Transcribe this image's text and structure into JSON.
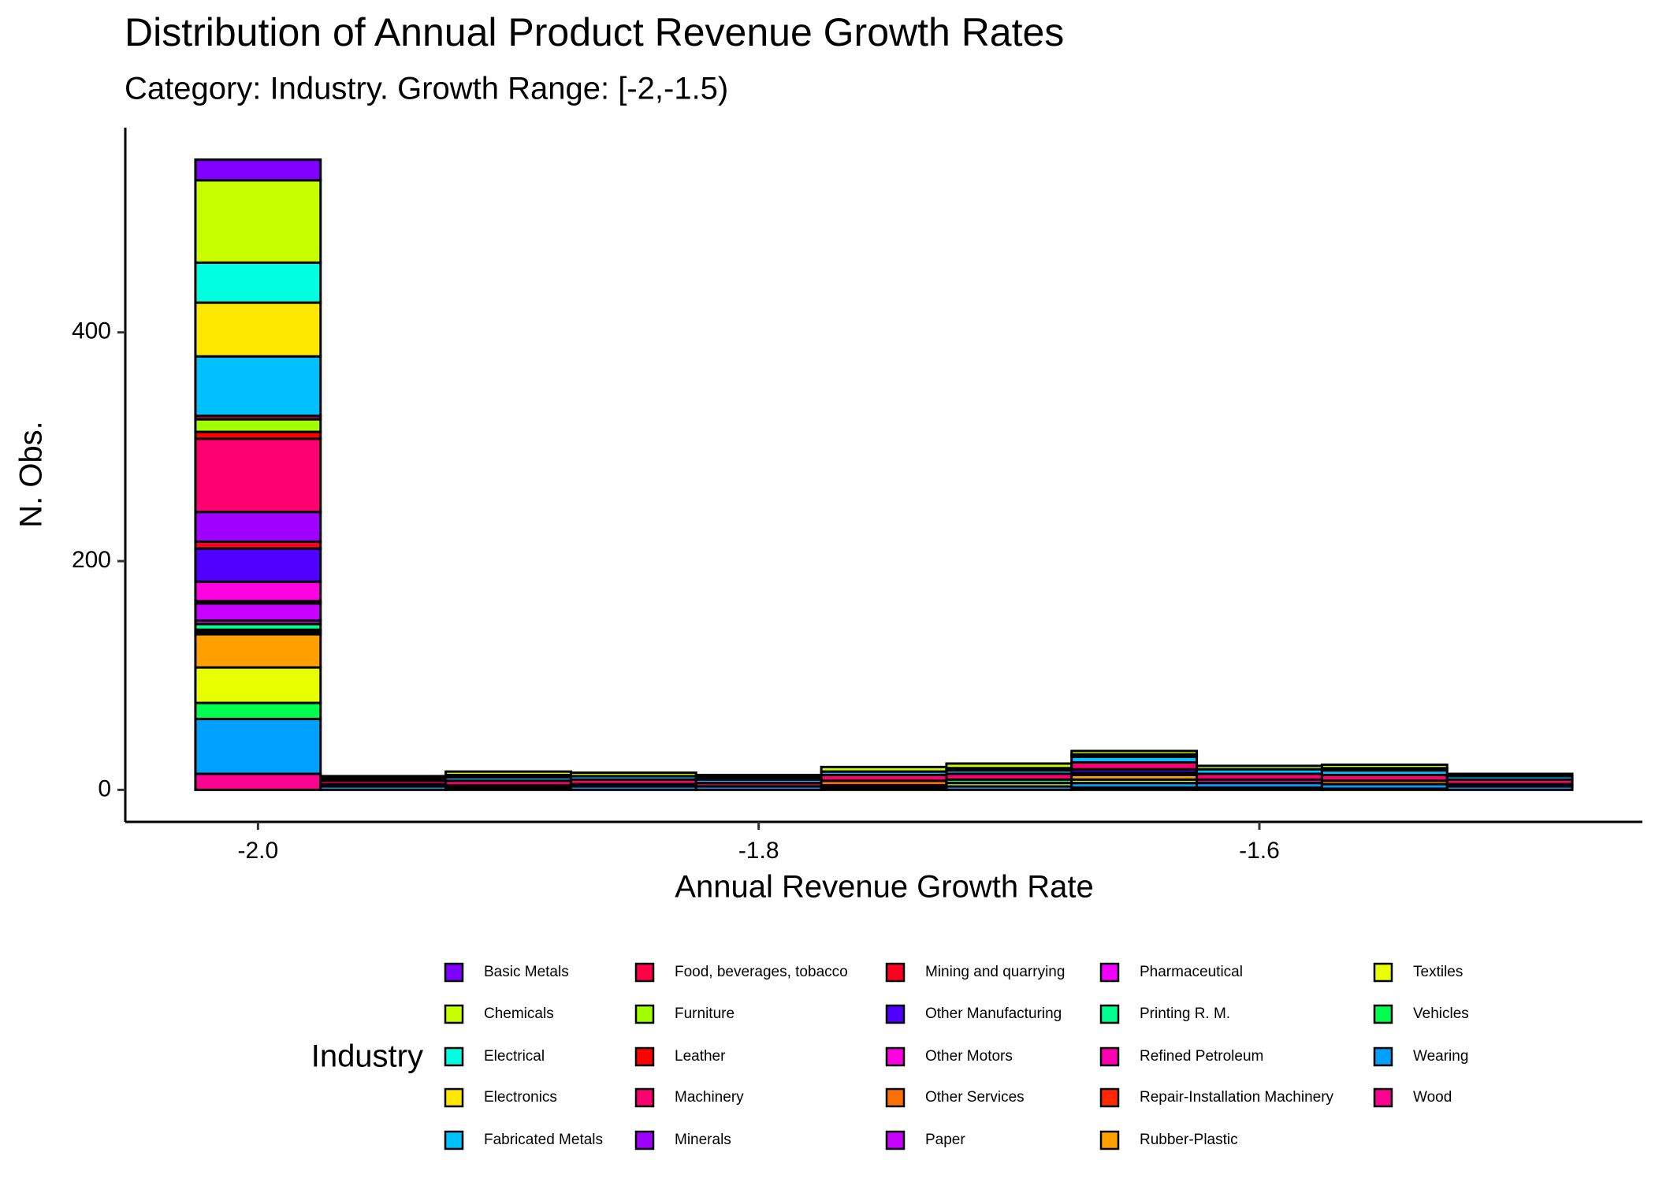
{
  "chart_data": {
    "type": "histogram",
    "title": "Distribution of Annual Product Revenue Growth Rates",
    "subtitle": "Category: Industry. Growth Range: [-2,-1.5)",
    "x_label": "Annual Revenue Growth Rate",
    "y_label": "N. Obs.",
    "legend_title": "Industry",
    "stacked": true,
    "bins": [
      -2.025,
      -1.975,
      -1.925,
      -1.875,
      -1.825,
      -1.775,
      -1.725,
      -1.675,
      -1.625,
      -1.575,
      -1.525,
      -1.475
    ],
    "xlim": [
      -2.053,
      -1.447
    ],
    "xticks": [
      {
        "value": -2.0,
        "label": "-2.0"
      },
      -1.8,
      -1.6
    ],
    "ylim": [
      -28,
      579
    ],
    "yticks": [
      0,
      200,
      400
    ],
    "grid": false,
    "legend_position": "bottom",
    "series": [
      {
        "name": "Basic Metals",
        "color": "#7f00ff",
        "values": [
          18,
          0,
          0,
          0,
          0,
          0,
          0,
          0,
          0,
          0,
          0
        ]
      },
      {
        "name": "Chemicals",
        "color": "#c8ff00",
        "values": [
          72,
          2,
          3,
          3,
          2,
          4,
          4,
          3,
          3,
          3,
          2
        ]
      },
      {
        "name": "Electrical",
        "color": "#00ffe0",
        "values": [
          35,
          0,
          0,
          0,
          2,
          0,
          2,
          0,
          0,
          2,
          0
        ]
      },
      {
        "name": "Electronics",
        "color": "#ffe800",
        "values": [
          47,
          0,
          2,
          0,
          0,
          0,
          0,
          2,
          0,
          0,
          0
        ]
      },
      {
        "name": "Fabricated Metals",
        "color": "#00c0ff",
        "values": [
          52,
          2,
          3,
          3,
          3,
          3,
          3,
          5,
          4,
          4,
          3
        ]
      },
      {
        "name": "Food, beverages, tobacco",
        "color": "#ff0048",
        "values": [
          3,
          0,
          0,
          0,
          0,
          0,
          0,
          0,
          0,
          0,
          0
        ]
      },
      {
        "name": "Furniture",
        "color": "#a0ff00",
        "values": [
          11,
          0,
          0,
          0,
          0,
          0,
          0,
          0,
          0,
          0,
          0
        ]
      },
      {
        "name": "Leather",
        "color": "#ff0000",
        "values": [
          6,
          0,
          0,
          0,
          0,
          0,
          0,
          0,
          0,
          0,
          0
        ]
      },
      {
        "name": "Machinery",
        "color": "#ff0070",
        "values": [
          64,
          3,
          4,
          4,
          3,
          5,
          5,
          6,
          5,
          5,
          4
        ]
      },
      {
        "name": "Minerals",
        "color": "#a000ff",
        "values": [
          26,
          0,
          0,
          0,
          0,
          0,
          0,
          0,
          0,
          0,
          0
        ]
      },
      {
        "name": "Mining and quarrying",
        "color": "#ff0020",
        "values": [
          6,
          0,
          0,
          0,
          0,
          0,
          0,
          0,
          0,
          0,
          0
        ]
      },
      {
        "name": "Other Manufacturing",
        "color": "#5000ff",
        "values": [
          29,
          0,
          0,
          0,
          0,
          0,
          0,
          3,
          0,
          0,
          0
        ]
      },
      {
        "name": "Other Motors",
        "color": "#ff00e0",
        "values": [
          17,
          0,
          0,
          0,
          0,
          0,
          0,
          0,
          0,
          0,
          0
        ]
      },
      {
        "name": "Other Services",
        "color": "#ff7000",
        "values": [
          2,
          0,
          0,
          0,
          0,
          4,
          0,
          0,
          0,
          0,
          0
        ]
      },
      {
        "name": "Paper",
        "color": "#c800ff",
        "values": [
          15,
          0,
          0,
          0,
          0,
          0,
          0,
          0,
          0,
          0,
          0
        ]
      },
      {
        "name": "Pharmaceutical",
        "color": "#f000ff",
        "values": [
          3,
          0,
          0,
          0,
          0,
          0,
          0,
          0,
          0,
          0,
          0
        ]
      },
      {
        "name": "Printing R. M.",
        "color": "#00ff90",
        "values": [
          5,
          0,
          0,
          0,
          0,
          0,
          3,
          0,
          0,
          0,
          0
        ]
      },
      {
        "name": "Refined Petroleum",
        "color": "#ff00b0",
        "values": [
          2,
          0,
          0,
          0,
          0,
          0,
          0,
          2,
          3,
          0,
          0
        ]
      },
      {
        "name": "Repair-Installation Machinery",
        "color": "#ff2800",
        "values": [
          2,
          0,
          0,
          0,
          0,
          0,
          0,
          0,
          0,
          0,
          0
        ]
      },
      {
        "name": "Rubber-Plastic",
        "color": "#ffa000",
        "values": [
          29,
          2,
          0,
          2,
          0,
          0,
          0,
          4,
          0,
          3,
          2
        ]
      },
      {
        "name": "Textiles",
        "color": "#e8ff00",
        "values": [
          31,
          0,
          2,
          0,
          0,
          2,
          3,
          3,
          0,
          0,
          0
        ]
      },
      {
        "name": "Vehicles",
        "color": "#00ff50",
        "values": [
          14,
          0,
          0,
          0,
          0,
          0,
          0,
          0,
          0,
          0,
          0
        ]
      },
      {
        "name": "Wearing",
        "color": "#00a0ff",
        "values": [
          48,
          3,
          2,
          3,
          3,
          0,
          3,
          4,
          4,
          4,
          3
        ]
      },
      {
        "name": "Wood",
        "color": "#ff0090",
        "values": [
          14,
          0,
          0,
          0,
          0,
          2,
          0,
          2,
          2,
          1,
          0
        ]
      }
    ]
  }
}
